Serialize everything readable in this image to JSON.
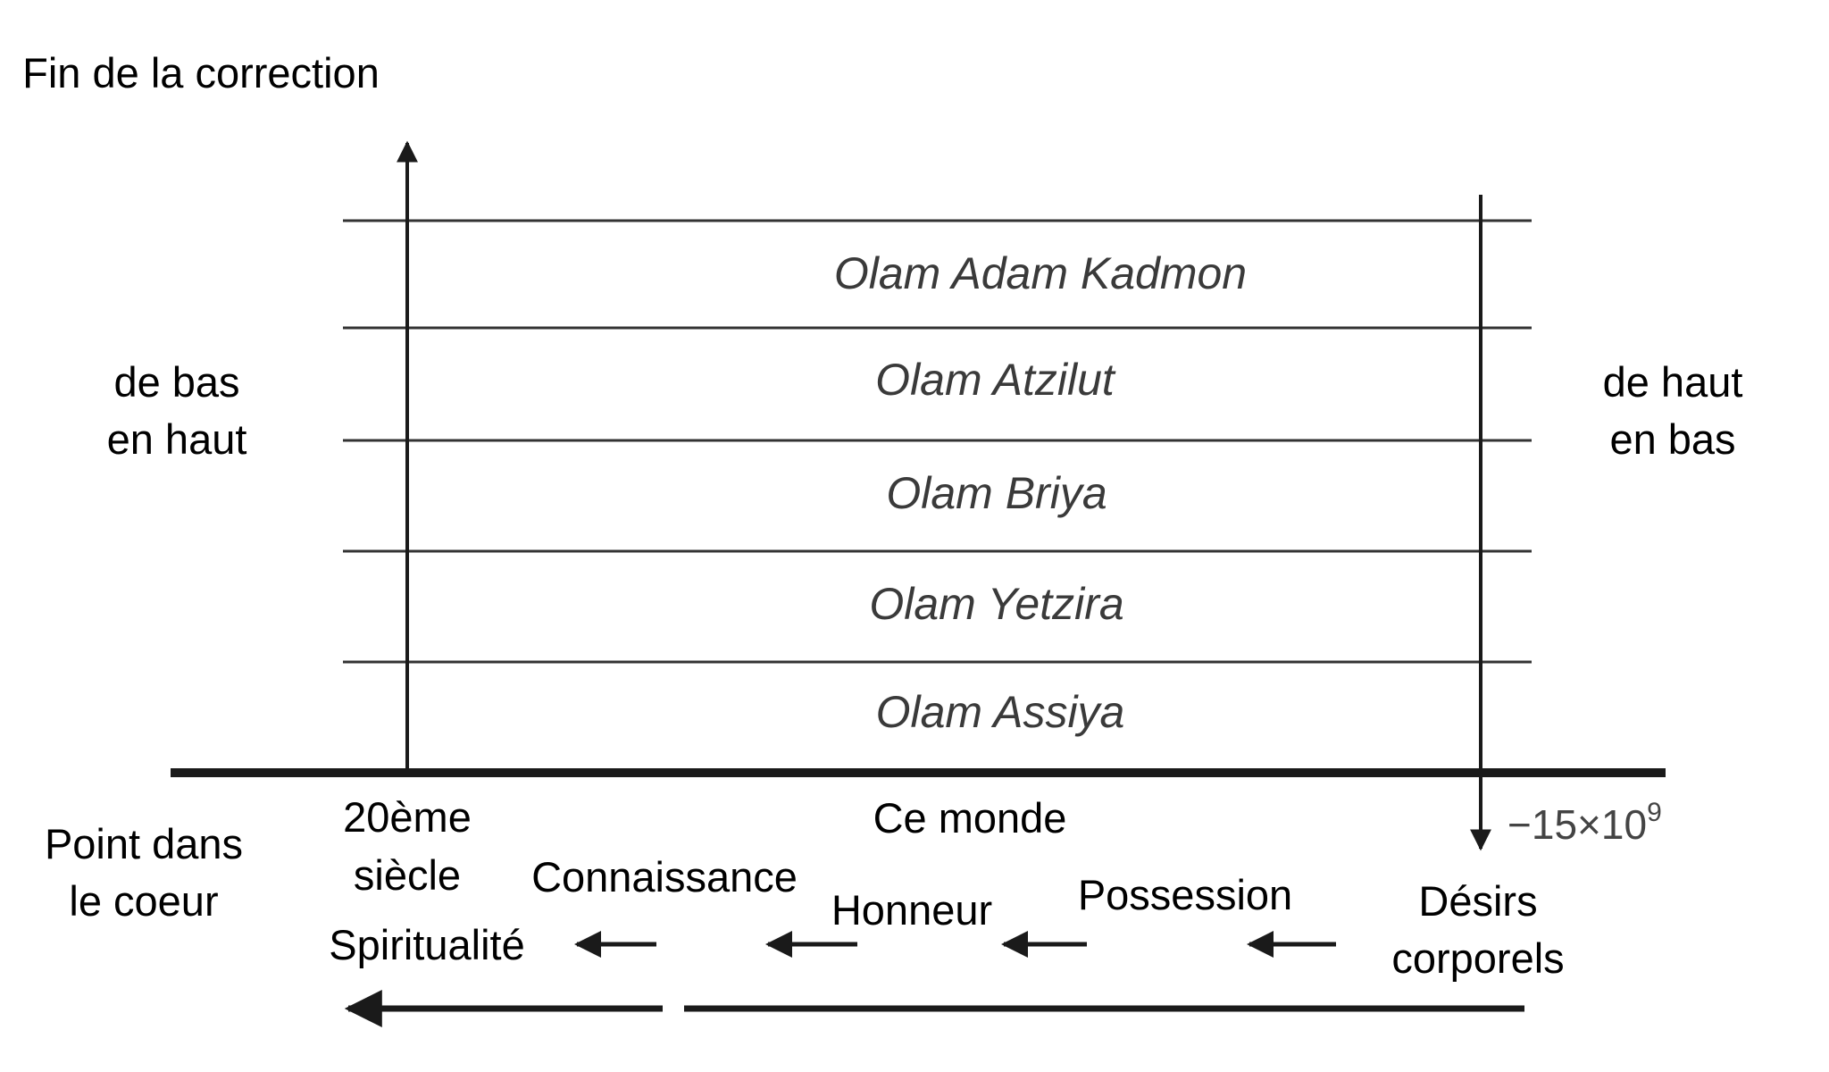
{
  "title": "Fin de la correction",
  "layers": [
    "Olam Adam Kadmon",
    "Olam Atzilut",
    "Olam Briya",
    "Olam Yetzira",
    "Olam Assiya"
  ],
  "left_label": [
    "de bas",
    "en haut"
  ],
  "right_label": [
    "de haut",
    "en bas"
  ],
  "time_label": {
    "base": "−15×10",
    "exp": "9"
  },
  "point_label": [
    "Point dans",
    "le coeur"
  ],
  "century_label": [
    "20ème",
    "siècle"
  ],
  "this_world": "Ce monde",
  "desires": {
    "spirituality": "Spiritualité",
    "knowledge": "Connaissance",
    "honor": "Honneur",
    "possession": "Possession",
    "bodily": [
      "Désirs",
      "corporels"
    ]
  },
  "colors": {
    "line": "#1a1a1a",
    "layer_text": "#3a3a3a"
  }
}
